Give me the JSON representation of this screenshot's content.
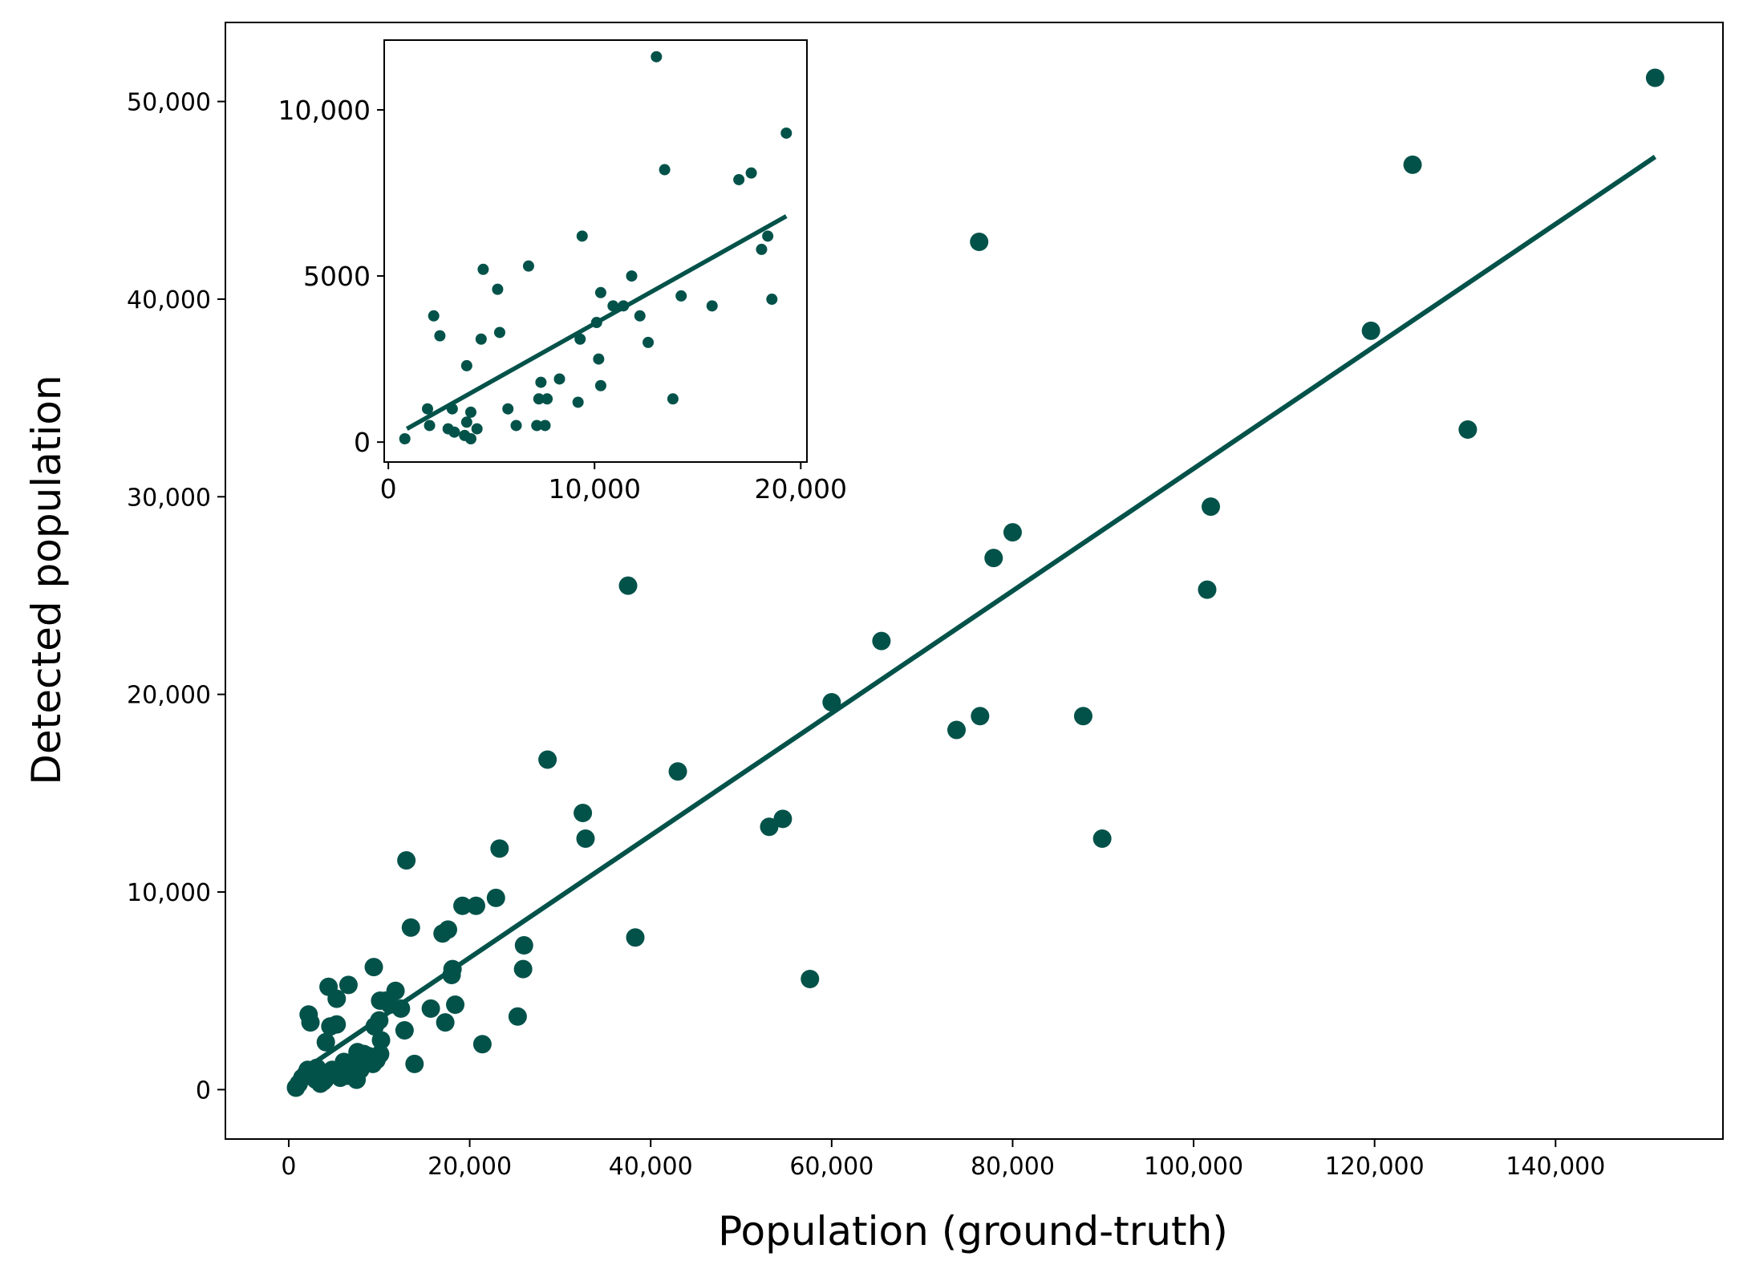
{
  "chart_data": {
    "type": "scatter",
    "title": "",
    "xlabel": "Population (ground-truth)",
    "ylabel": "Detected population",
    "xlim": [
      -7000,
      158500
    ],
    "ylim": [
      -2500,
      54000
    ],
    "xticks": [
      0,
      20000,
      40000,
      60000,
      80000,
      100000,
      120000,
      140000
    ],
    "xtick_labels": [
      "0",
      "20,000",
      "40,000",
      "60,000",
      "80,000",
      "100,000",
      "120,000",
      "140,000"
    ],
    "yticks": [
      0,
      10000,
      20000,
      30000,
      40000,
      50000
    ],
    "ytick_labels": [
      "0",
      "10,000",
      "20,000",
      "30,000",
      "40,000",
      "50,000"
    ],
    "grid": false,
    "legend": "none",
    "color": "#03524a",
    "series": [
      {
        "type": "scatter",
        "points": [
          [
            151000,
            51200
          ],
          [
            124200,
            46800
          ],
          [
            119600,
            38400
          ],
          [
            130300,
            33400
          ],
          [
            101900,
            29500
          ],
          [
            101500,
            25300
          ],
          [
            89900,
            12700
          ],
          [
            87800,
            18900
          ],
          [
            80000,
            28200
          ],
          [
            77900,
            26900
          ],
          [
            76300,
            42900
          ],
          [
            76400,
            18900
          ],
          [
            73800,
            18200
          ],
          [
            65500,
            22700
          ],
          [
            60000,
            19600
          ],
          [
            57600,
            5600
          ],
          [
            54600,
            13700
          ],
          [
            53100,
            13300
          ],
          [
            43000,
            16100
          ],
          [
            38300,
            7700
          ],
          [
            37500,
            25500
          ],
          [
            32800,
            12700
          ],
          [
            32500,
            14000
          ],
          [
            28600,
            16700
          ],
          [
            26000,
            7300
          ],
          [
            25900,
            6100
          ],
          [
            25300,
            3700
          ],
          [
            23300,
            12200
          ],
          [
            22900,
            9700
          ],
          [
            21400,
            2300
          ],
          [
            20700,
            9300
          ],
          [
            19200,
            9300
          ],
          [
            18400,
            4300
          ],
          [
            18100,
            6100
          ],
          [
            18000,
            5800
          ],
          [
            17600,
            8100
          ],
          [
            17000,
            7900
          ],
          [
            17300,
            3400
          ],
          [
            15700,
            4100
          ],
          [
            13900,
            1300
          ],
          [
            13500,
            8200
          ],
          [
            13000,
            11600
          ],
          [
            12800,
            3000
          ],
          [
            12400,
            4100
          ],
          [
            11800,
            5000
          ],
          [
            11200,
            4300
          ],
          [
            10700,
            4500
          ],
          [
            10100,
            4500
          ],
          [
            10200,
            2500
          ],
          [
            10000,
            3500
          ],
          [
            10100,
            1800
          ],
          [
            9700,
            1500
          ],
          [
            9500,
            3200
          ],
          [
            9400,
            6200
          ],
          [
            9300,
            1300
          ],
          [
            8800,
            1700
          ],
          [
            8300,
            1800
          ],
          [
            7900,
            1000
          ],
          [
            7600,
            1900
          ],
          [
            7500,
            500
          ],
          [
            7000,
            1300
          ],
          [
            6900,
            700
          ],
          [
            6600,
            5300
          ],
          [
            6500,
            700
          ],
          [
            6100,
            1400
          ],
          [
            5700,
            600
          ],
          [
            5500,
            1000
          ],
          [
            5300,
            4600
          ],
          [
            5300,
            3300
          ],
          [
            4800,
            1000
          ],
          [
            4600,
            3200
          ],
          [
            4400,
            5200
          ],
          [
            4100,
            2400
          ],
          [
            4000,
            500
          ],
          [
            3900,
            800
          ],
          [
            3800,
            400
          ],
          [
            3600,
            700
          ],
          [
            3500,
            300
          ],
          [
            3200,
            600
          ],
          [
            3100,
            1100
          ],
          [
            3000,
            500
          ],
          [
            2800,
            800
          ],
          [
            2400,
            3400
          ],
          [
            2200,
            3800
          ],
          [
            2100,
            1000
          ],
          [
            1900,
            800
          ],
          [
            1500,
            600
          ],
          [
            1100,
            300
          ],
          [
            800,
            100
          ]
        ]
      },
      {
        "type": "line",
        "name": "fit",
        "x": [
          1000,
          151000
        ],
        "y": [
          800,
          47200
        ]
      }
    ],
    "inset": {
      "type": "scatter",
      "xlim": [
        -200,
        20300
      ],
      "ylim": [
        -600,
        12100
      ],
      "xticks": [
        0,
        10000,
        20000
      ],
      "xtick_labels": [
        "0",
        "10,000",
        "20,000"
      ],
      "yticks": [
        0,
        5000,
        10000
      ],
      "ytick_labels": [
        "0",
        "5000",
        "10,000"
      ],
      "series": [
        {
          "type": "scatter",
          "points": [
            [
              13000,
              11600
            ],
            [
              19300,
              9300
            ],
            [
              13400,
              8200
            ],
            [
              17600,
              8100
            ],
            [
              17000,
              7900
            ],
            [
              9400,
              6200
            ],
            [
              18400,
              6200
            ],
            [
              18100,
              5800
            ],
            [
              6800,
              5300
            ],
            [
              4600,
              5200
            ],
            [
              11800,
              5000
            ],
            [
              5300,
              4600
            ],
            [
              10300,
              4500
            ],
            [
              14200,
              4400
            ],
            [
              18600,
              4300
            ],
            [
              15700,
              4100
            ],
            [
              10900,
              4100
            ],
            [
              11400,
              4100
            ],
            [
              12200,
              3800
            ],
            [
              2200,
              3800
            ],
            [
              10100,
              3600
            ],
            [
              5400,
              3300
            ],
            [
              2500,
              3200
            ],
            [
              4500,
              3100
            ],
            [
              9300,
              3100
            ],
            [
              12600,
              3000
            ],
            [
              10200,
              2500
            ],
            [
              3800,
              2300
            ],
            [
              7400,
              1800
            ],
            [
              8300,
              1900
            ],
            [
              10300,
              1700
            ],
            [
              13800,
              1300
            ],
            [
              7300,
              1300
            ],
            [
              7700,
              1300
            ],
            [
              9200,
              1200
            ],
            [
              5800,
              1000
            ],
            [
              1900,
              1000
            ],
            [
              3100,
              1000
            ],
            [
              4000,
              900
            ],
            [
              3800,
              600
            ],
            [
              6200,
              500
            ],
            [
              7200,
              500
            ],
            [
              7600,
              500
            ],
            [
              2000,
              500
            ],
            [
              2900,
              400
            ],
            [
              4300,
              400
            ],
            [
              3200,
              300
            ],
            [
              3700,
              200
            ],
            [
              4000,
              100
            ],
            [
              800,
              100
            ]
          ]
        },
        {
          "type": "line",
          "name": "fit",
          "x": [
            900,
            19300
          ],
          "y": [
            400,
            6800
          ]
        }
      ]
    }
  }
}
